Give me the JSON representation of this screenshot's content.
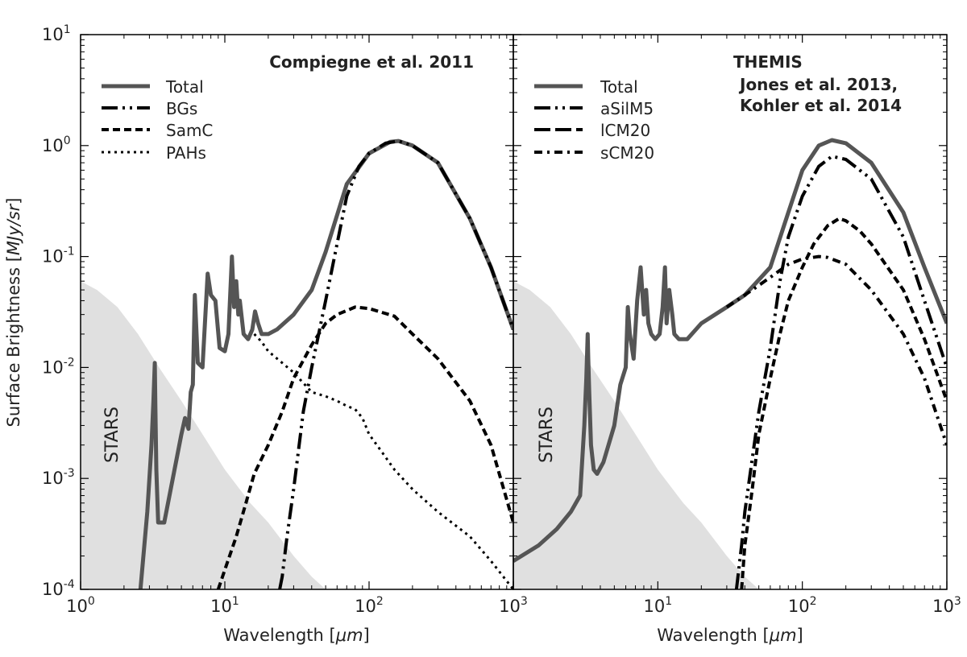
{
  "chart_data": {
    "type": "line",
    "log_x": true,
    "log_y": true,
    "xlim": [
      1,
      1000
    ],
    "ylim": [
      0.0001,
      10
    ],
    "ylabel_text": "Surface Brightness",
    "ylabel_unit": "MJy/sr",
    "xlabel_text": "Wavelength",
    "xlabel_unit": "μm",
    "x_ticks": [
      {
        "base": "10",
        "exp": "0",
        "value": 1
      },
      {
        "base": "10",
        "exp": "1",
        "value": 10
      },
      {
        "base": "10",
        "exp": "2",
        "value": 100
      },
      {
        "base": "10",
        "exp": "3",
        "value": 1000
      }
    ],
    "y_ticks": [
      {
        "base": "10",
        "exp": "-4",
        "value": 0.0001
      },
      {
        "base": "10",
        "exp": "-3",
        "value": 0.001
      },
      {
        "base": "10",
        "exp": "-2",
        "value": 0.01
      },
      {
        "base": "10",
        "exp": "-1",
        "value": 0.1
      },
      {
        "base": "10",
        "exp": "0",
        "value": 1
      },
      {
        "base": "10",
        "exp": "1",
        "value": 10
      }
    ],
    "panels": [
      {
        "title_lines": [
          "Compiegne et al. 2011"
        ],
        "stars_label": "STARS",
        "stars": {
          "x": [
            1,
            1.3,
            1.8,
            2.5,
            3.5,
            5,
            7,
            10,
            15,
            20,
            30,
            40,
            50,
            55
          ],
          "y": [
            0.06,
            0.05,
            0.035,
            0.02,
            0.01,
            0.005,
            0.0025,
            0.0012,
            0.0006,
            0.0004,
            0.0002,
            0.00013,
            0.0001,
            0.0001
          ]
        },
        "series": [
          {
            "name": "Total",
            "style": "solid",
            "x": [
              2.6,
              2.9,
              3.1,
              3.2,
              3.27,
              3.3,
              3.35,
              3.45,
              3.8,
              5.0,
              5.3,
              5.6,
              5.8,
              6.0,
              6.2,
              6.5,
              7.0,
              7.6,
              8.0,
              8.6,
              9.2,
              10,
              10.6,
              11.2,
              11.6,
              12,
              12.4,
              12.7,
              13.5,
              14.5,
              15.5,
              16.2,
              17,
              18,
              20,
              23,
              30,
              40,
              50,
              70,
              100,
              140,
              160,
              200,
              300,
              500,
              700,
              1000
            ],
            "y": [
              0.0001,
              0.0005,
              0.002,
              0.005,
              0.011,
              0.0045,
              0.0012,
              0.0004,
              0.0004,
              0.0025,
              0.0035,
              0.0028,
              0.006,
              0.007,
              0.045,
              0.011,
              0.01,
              0.07,
              0.045,
              0.04,
              0.015,
              0.014,
              0.02,
              0.1,
              0.035,
              0.06,
              0.03,
              0.04,
              0.02,
              0.018,
              0.022,
              0.032,
              0.025,
              0.02,
              0.02,
              0.022,
              0.03,
              0.05,
              0.11,
              0.45,
              0.85,
              1.08,
              1.1,
              1.0,
              0.7,
              0.22,
              0.08,
              0.022
            ]
          },
          {
            "name": "BGs",
            "style": "dashdotdot",
            "x": [
              24,
              25,
              27,
              30,
              35,
              40,
              50,
              60,
              70,
              85,
              100,
              130,
              160,
              200,
              300,
              500,
              700,
              1000
            ],
            "y": [
              0.0001,
              0.00013,
              0.0003,
              0.0008,
              0.004,
              0.01,
              0.04,
              0.13,
              0.35,
              0.65,
              0.85,
              1.05,
              1.1,
              1.0,
              0.7,
              0.22,
              0.08,
              0.022
            ]
          },
          {
            "name": "SamC",
            "style": "dashed",
            "x": [
              9,
              10,
              12,
              14,
              16,
              20,
              25,
              30,
              40,
              50,
              60,
              80,
              100,
              150,
              200,
              300,
              500,
              700,
              1000
            ],
            "y": [
              0.0001,
              0.00015,
              0.0003,
              0.0006,
              0.0011,
              0.002,
              0.004,
              0.008,
              0.016,
              0.025,
              0.03,
              0.035,
              0.034,
              0.029,
              0.02,
              0.012,
              0.005,
              0.002,
              0.0004
            ]
          },
          {
            "name": "PAHs",
            "style": "dotted",
            "x": [
              16,
              18,
              20,
              25,
              30,
              40,
              50,
              60,
              70,
              80,
              90,
              100,
              120,
              150,
              200,
              300,
              500,
              700,
              1000
            ],
            "y": [
              0.02,
              0.017,
              0.014,
              0.011,
              0.009,
              0.006,
              0.0055,
              0.005,
              0.0045,
              0.0042,
              0.0035,
              0.0025,
              0.0018,
              0.0012,
              0.0008,
              0.0005,
              0.0003,
              0.00018,
              0.0001
            ]
          }
        ]
      },
      {
        "title_lines": [
          "THEMIS",
          "Jones et al. 2013,",
          "Kohler et al. 2014"
        ],
        "stars_label": "STARS",
        "stars": {
          "x": [
            1,
            1.3,
            1.8,
            2.5,
            3.5,
            5,
            7,
            10,
            15,
            20,
            30,
            40,
            50,
            55
          ],
          "y": [
            0.06,
            0.05,
            0.035,
            0.02,
            0.01,
            0.005,
            0.0025,
            0.0012,
            0.0006,
            0.0004,
            0.0002,
            0.00013,
            0.0001,
            0.0001
          ]
        },
        "series": [
          {
            "name": "Total",
            "style": "solid",
            "x": [
              1,
              1.5,
              2,
              2.5,
              2.9,
              3.1,
              3.2,
              3.27,
              3.3,
              3.35,
              3.45,
              3.6,
              3.8,
              4.2,
              5,
              5.5,
              6.0,
              6.2,
              6.4,
              6.8,
              7.2,
              7.6,
              8.0,
              8.3,
              8.6,
              9.0,
              9.6,
              10.3,
              10.8,
              11.2,
              11.5,
              12,
              12.6,
              13,
              14,
              16,
              20,
              30,
              40,
              60,
              80,
              100,
              130,
              160,
              200,
              300,
              500,
              700,
              1000
            ],
            "y": [
              0.00018,
              0.00025,
              0.00035,
              0.0005,
              0.0007,
              0.003,
              0.008,
              0.02,
              0.012,
              0.006,
              0.002,
              0.0012,
              0.0011,
              0.0014,
              0.003,
              0.007,
              0.01,
              0.035,
              0.02,
              0.012,
              0.04,
              0.08,
              0.03,
              0.05,
              0.025,
              0.02,
              0.018,
              0.02,
              0.035,
              0.08,
              0.025,
              0.05,
              0.03,
              0.02,
              0.018,
              0.018,
              0.025,
              0.035,
              0.045,
              0.08,
              0.25,
              0.6,
              1.0,
              1.12,
              1.05,
              0.7,
              0.25,
              0.08,
              0.025
            ]
          },
          {
            "name": "aSilM5",
            "style": "dashdotdot",
            "x": [
              35,
              38,
              40,
              45,
              50,
              60,
              70,
              80,
              100,
              130,
              160,
              200,
              300,
              500,
              700,
              1000
            ],
            "y": [
              0.0001,
              0.00025,
              0.0005,
              0.0015,
              0.004,
              0.015,
              0.06,
              0.15,
              0.35,
              0.65,
              0.8,
              0.75,
              0.5,
              0.15,
              0.04,
              0.01
            ]
          },
          {
            "name": "lCM20",
            "style": "dashed",
            "x": [
              38,
              40,
              42,
              45,
              50,
              60,
              70,
              80,
              100,
              120,
              150,
              180,
              200,
              250,
              300,
              500,
              700,
              1000
            ],
            "y": [
              0.0001,
              0.00025,
              0.0004,
              0.0008,
              0.0025,
              0.008,
              0.02,
              0.04,
              0.08,
              0.13,
              0.19,
              0.22,
              0.21,
              0.17,
              0.13,
              0.05,
              0.018,
              0.005
            ]
          },
          {
            "name": "sCM20",
            "style": "dashdot",
            "x": [
              30,
              40,
              50,
              60,
              70,
              80,
              100,
              130,
              150,
              200,
              300,
              500,
              700,
              1000
            ],
            "y": [
              0.035,
              0.045,
              0.055,
              0.065,
              0.075,
              0.085,
              0.095,
              0.1,
              0.098,
              0.085,
              0.05,
              0.02,
              0.008,
              0.002
            ]
          }
        ]
      }
    ]
  }
}
